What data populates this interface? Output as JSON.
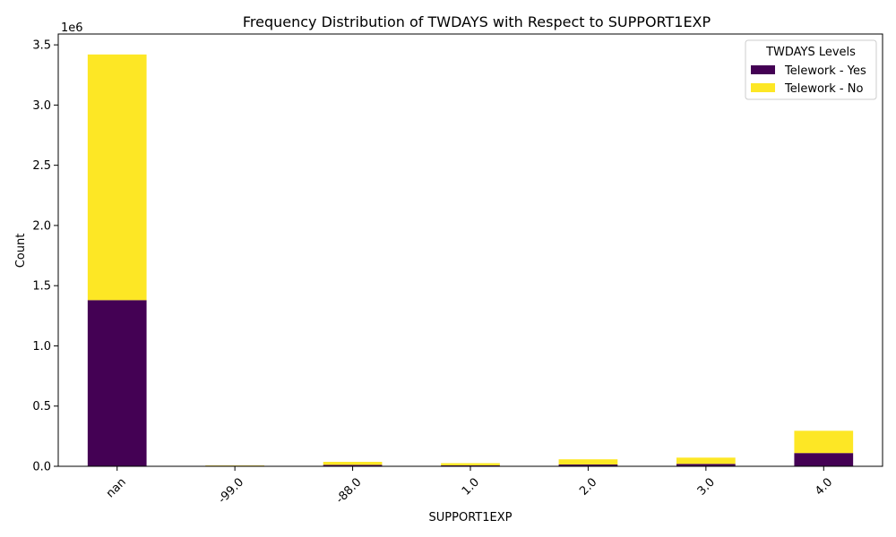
{
  "chart_data": {
    "type": "bar",
    "stacked": true,
    "title": "Frequency Distribution of TWDAYS with Respect to SUPPORT1EXP",
    "xlabel": "SUPPORT1EXP",
    "ylabel": "Count",
    "y_offset_label": "1e6",
    "categories": [
      "nan",
      "-99.0",
      "-88.0",
      "1.0",
      "2.0",
      "3.0",
      "4.0"
    ],
    "series": [
      {
        "name": "Telework - Yes",
        "color": "#440154",
        "values": [
          1380000,
          5000,
          12000,
          8000,
          15000,
          20000,
          110000
        ]
      },
      {
        "name": "Telework - No",
        "color": "#fde725",
        "values": [
          2040000,
          3000,
          25000,
          18000,
          43000,
          52000,
          185000
        ]
      }
    ],
    "ylim": [
      0,
      3590000
    ],
    "yticks": [
      0,
      500000,
      1000000,
      1500000,
      2000000,
      2500000,
      3000000,
      3500000
    ],
    "ytick_labels": [
      "0.0",
      "0.5",
      "1.0",
      "1.5",
      "2.0",
      "2.5",
      "3.0",
      "3.5"
    ],
    "legend": {
      "title": "TWDAYS Levels",
      "position": "top-right"
    },
    "grid": false
  }
}
